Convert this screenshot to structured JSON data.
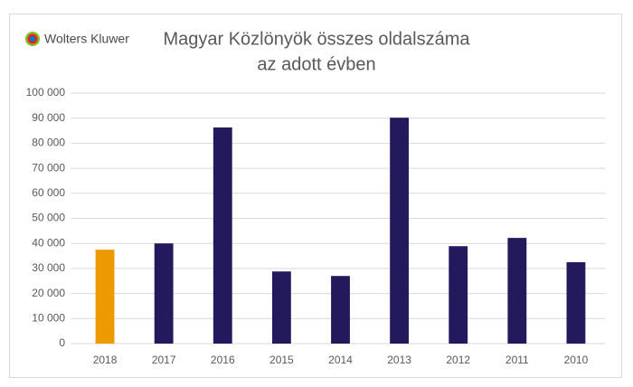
{
  "logo": "Wolters Kluwer",
  "chart_data": {
    "type": "bar",
    "title_lines": [
      "Magyar Közlönyök összes oldalszáma",
      "az adott évben"
    ],
    "categories": [
      "2018",
      "2017",
      "2016",
      "2015",
      "2014",
      "2013",
      "2012",
      "2011",
      "2010"
    ],
    "values": [
      37500,
      40000,
      86300,
      28800,
      27000,
      90200,
      38900,
      42200,
      32500
    ],
    "colors": [
      "#ed9a00",
      "#231a5e",
      "#231a5e",
      "#231a5e",
      "#231a5e",
      "#231a5e",
      "#231a5e",
      "#231a5e",
      "#231a5e"
    ],
    "ylim": [
      0,
      100000
    ],
    "yticks": [
      0,
      {
        "value": 10000,
        "label": "10 000"
      },
      {
        "value": 20000,
        "label": "20 000"
      },
      {
        "value": 30000,
        "label": "30 000"
      },
      {
        "value": 40000,
        "label": "40 000"
      },
      {
        "value": 50000,
        "label": "50 000"
      },
      {
        "value": 60000,
        "label": "60 000"
      },
      {
        "value": 70000,
        "label": "70 000"
      },
      {
        "value": 80000,
        "label": "80 000"
      },
      {
        "value": 90000,
        "label": "90 000"
      },
      {
        "value": 100000,
        "label": "100 000"
      }
    ],
    "grid": true
  }
}
